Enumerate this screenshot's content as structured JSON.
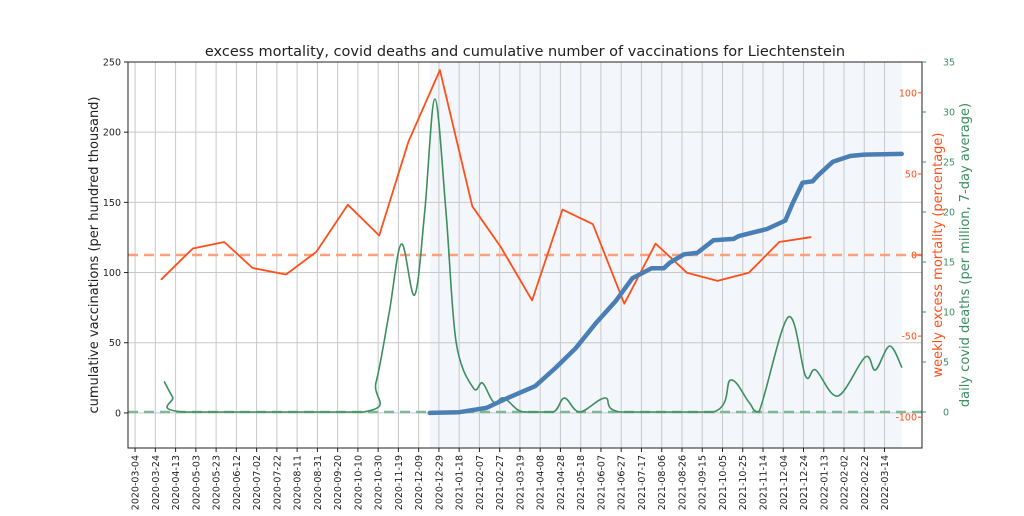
{
  "chart_data": {
    "type": "line",
    "title": "excess mortality, covid deaths and cumulative number of vaccinations for Liechtenstein",
    "x_type": "date",
    "x_range": [
      "2020-02-26",
      "2022-04-20"
    ],
    "x_ticks": [
      "2020-03-04",
      "2020-03-24",
      "2020-04-13",
      "2020-05-03",
      "2020-05-23",
      "2020-06-12",
      "2020-07-02",
      "2020-07-22",
      "2020-08-11",
      "2020-08-31",
      "2020-09-20",
      "2020-10-10",
      "2020-10-30",
      "2020-11-19",
      "2020-12-09",
      "2020-12-29",
      "2021-01-18",
      "2021-02-07",
      "2021-02-27",
      "2021-03-19",
      "2021-04-08",
      "2021-04-28",
      "2021-05-18",
      "2021-06-07",
      "2021-06-27",
      "2021-07-17",
      "2021-08-06",
      "2021-08-26",
      "2021-09-15",
      "2021-10-05",
      "2021-10-25",
      "2021-11-14",
      "2021-12-04",
      "2021-12-24",
      "2022-01-13",
      "2022-02-02",
      "2022-02-22",
      "2022-03-14"
    ],
    "grid": true,
    "shaded_span": {
      "from": "2020-12-20",
      "to": "2022-03-31",
      "color": "#f3f6fa"
    },
    "axes": {
      "left": {
        "label": "cumulative vaccinations (per hundred thousand)",
        "range": [
          -25,
          250
        ],
        "ticks": [
          0,
          50,
          100,
          150,
          200,
          250
        ],
        "color": "#222222"
      },
      "right1": {
        "label": "weekly excess mortality (percentage)",
        "range": [
          -119,
          119
        ],
        "ticks": [
          -100,
          -50,
          0,
          50,
          100
        ],
        "color": "#ff4f1a"
      },
      "right2": {
        "label": "daily covid deaths (per million, 7-day average)",
        "range": [
          -3.6,
          35
        ],
        "ticks": [
          0,
          5,
          10,
          15,
          20,
          25,
          30,
          35
        ],
        "color": "#3d8f5f"
      }
    },
    "reference_lines": [
      {
        "axis": "right1",
        "value": 0,
        "color": "#ffa07a",
        "style": "dashed"
      },
      {
        "axis": "right2",
        "value": 0,
        "color": "#7fb896",
        "style": "dashed"
      }
    ],
    "series": [
      {
        "id": "vaccinations",
        "axis": "left",
        "color": "#4a7fb5",
        "points": [
          [
            "2020-12-20",
            0
          ],
          [
            "2021-01-18",
            0.5
          ],
          [
            "2021-02-14",
            3.6
          ],
          [
            "2021-03-07",
            10.7
          ],
          [
            "2021-04-03",
            19
          ],
          [
            "2021-04-23",
            32
          ],
          [
            "2021-05-13",
            46
          ],
          [
            "2021-06-02",
            64
          ],
          [
            "2021-06-22",
            80
          ],
          [
            "2021-07-08",
            96
          ],
          [
            "2021-07-27",
            103
          ],
          [
            "2021-08-08",
            103
          ],
          [
            "2021-08-14",
            107
          ],
          [
            "2021-08-28",
            113
          ],
          [
            "2021-09-10",
            114
          ],
          [
            "2021-09-26",
            123
          ],
          [
            "2021-10-16",
            124
          ],
          [
            "2021-10-21",
            126
          ],
          [
            "2021-11-18",
            131
          ],
          [
            "2021-12-03",
            136
          ],
          [
            "2021-12-06",
            137
          ],
          [
            "2021-12-13",
            149
          ],
          [
            "2021-12-23",
            164
          ],
          [
            "2022-01-02",
            165
          ],
          [
            "2022-01-07",
            169
          ],
          [
            "2022-01-22",
            179
          ],
          [
            "2022-02-08",
            183
          ],
          [
            "2022-02-22",
            184
          ],
          [
            "2022-03-31",
            184.5
          ]
        ]
      },
      {
        "id": "excess-mortality",
        "axis": "right1",
        "color": "#ff4f1a",
        "points": [
          [
            "2020-03-30",
            -15
          ],
          [
            "2020-04-30",
            4
          ],
          [
            "2020-05-31",
            8
          ],
          [
            "2020-06-28",
            -8
          ],
          [
            "2020-07-31",
            -12
          ],
          [
            "2020-08-30",
            2
          ],
          [
            "2020-09-30",
            31
          ],
          [
            "2020-10-31",
            12
          ],
          [
            "2020-11-29",
            70
          ],
          [
            "2020-12-30",
            114
          ],
          [
            "2021-01-31",
            30
          ],
          [
            "2021-02-28",
            5
          ],
          [
            "2021-03-31",
            -28
          ],
          [
            "2021-04-30",
            28
          ],
          [
            "2021-05-30",
            19
          ],
          [
            "2021-06-30",
            -30
          ],
          [
            "2021-07-31",
            7
          ],
          [
            "2021-08-31",
            -11
          ],
          [
            "2021-09-30",
            -16
          ],
          [
            "2021-10-31",
            -11
          ],
          [
            "2021-11-30",
            8
          ],
          [
            "2021-12-31",
            11
          ]
        ]
      },
      {
        "id": "covid-deaths",
        "axis": "right2",
        "color": "#3d8f5f",
        "smooth": true,
        "points": [
          [
            "2020-04-02",
            3
          ],
          [
            "2020-04-10",
            1.5
          ],
          [
            "2020-04-21",
            0
          ],
          [
            "2020-10-15",
            0
          ],
          [
            "2020-10-28",
            3
          ],
          [
            "2020-11-10",
            10
          ],
          [
            "2020-11-22",
            16.8
          ],
          [
            "2020-12-05",
            11.7
          ],
          [
            "2020-12-15",
            20
          ],
          [
            "2020-12-25",
            31.3
          ],
          [
            "2021-01-05",
            20
          ],
          [
            "2021-01-15",
            7
          ],
          [
            "2021-02-01",
            2.4
          ],
          [
            "2021-02-10",
            2.9
          ],
          [
            "2021-02-21",
            1
          ],
          [
            "2021-03-03",
            1.4
          ],
          [
            "2021-03-17",
            0.2
          ],
          [
            "2021-03-27",
            0
          ],
          [
            "2021-04-21",
            0
          ],
          [
            "2021-05-02",
            1.4
          ],
          [
            "2021-05-17",
            0
          ],
          [
            "2021-06-11",
            1.4
          ],
          [
            "2021-06-26",
            0
          ],
          [
            "2021-09-26",
            0
          ],
          [
            "2021-10-13",
            3.2
          ],
          [
            "2021-10-31",
            1
          ],
          [
            "2021-11-10",
            0
          ],
          [
            "2021-12-09",
            9.5
          ],
          [
            "2021-12-26",
            3.6
          ],
          [
            "2022-01-05",
            4.2
          ],
          [
            "2022-01-27",
            1.6
          ],
          [
            "2022-02-23",
            5.5
          ],
          [
            "2022-03-05",
            4.2
          ],
          [
            "2022-03-19",
            6.6
          ],
          [
            "2022-03-31",
            4.5
          ]
        ]
      }
    ]
  }
}
